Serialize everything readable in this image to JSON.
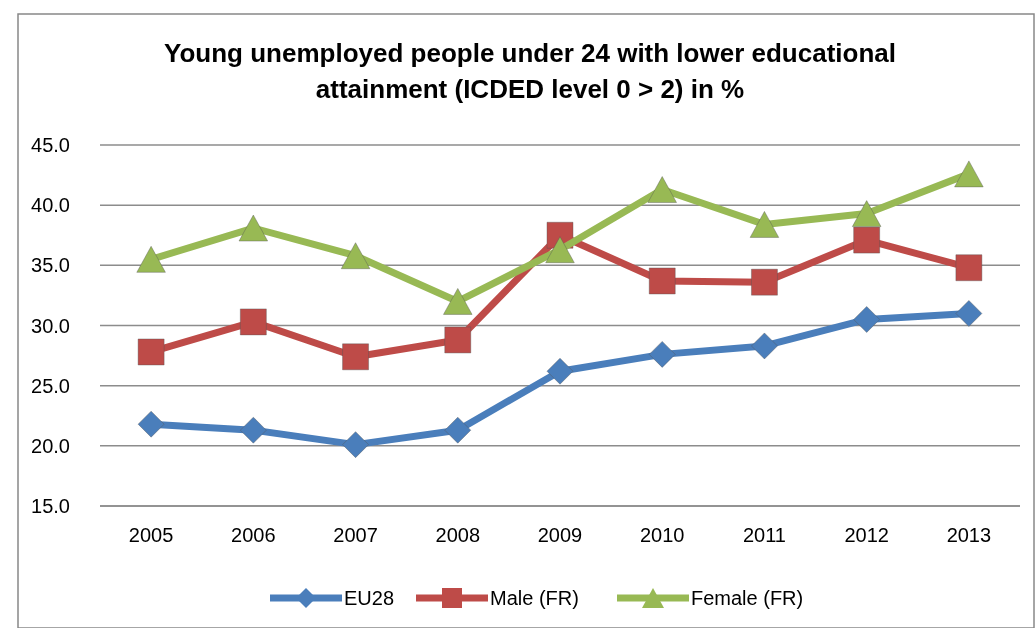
{
  "chart_data": {
    "type": "line",
    "title": "Young unemployed people under 24 with lower educational attainment (ICDED level 0 > 2) in %",
    "categories": [
      "2005",
      "2006",
      "2007",
      "2008",
      "2009",
      "2010",
      "2011",
      "2012",
      "2013"
    ],
    "series": [
      {
        "name": "EU28",
        "color": "#4a7ebb",
        "marker": "diamond",
        "values": [
          21.8,
          21.3,
          20.1,
          21.3,
          26.2,
          27.6,
          28.3,
          30.5,
          31.0
        ]
      },
      {
        "name": "Male (FR)",
        "color": "#be4b48",
        "marker": "square",
        "values": [
          27.8,
          30.3,
          27.4,
          28.8,
          37.5,
          33.7,
          33.6,
          37.1,
          34.8
        ]
      },
      {
        "name": "Female (FR)",
        "color": "#98b954",
        "marker": "triangle",
        "values": [
          35.5,
          38.1,
          35.8,
          32.0,
          36.3,
          41.3,
          38.4,
          39.3,
          42.6
        ]
      }
    ],
    "ylim": [
      15,
      45
    ],
    "yticks": [
      {
        "value": 15,
        "label": "15.0"
      },
      {
        "value": 20,
        "label": "20.0"
      },
      {
        "value": 25,
        "label": "25.0"
      },
      {
        "value": 30,
        "label": "30.0"
      },
      {
        "value": 35,
        "label": "35.0"
      },
      {
        "value": 40,
        "label": "40.0"
      },
      {
        "value": 45,
        "label": "45.0"
      }
    ],
    "grid": "y",
    "legend": "bottom",
    "line_style": "solid"
  }
}
